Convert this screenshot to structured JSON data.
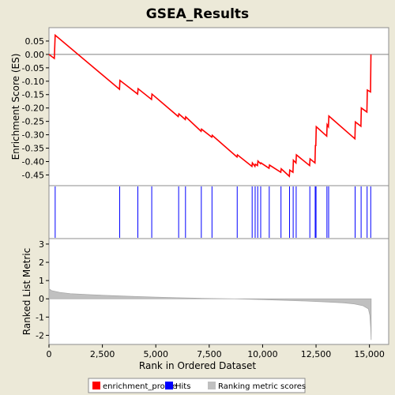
{
  "chart_data": {
    "type": "line",
    "title": "GSEA_Results",
    "xlabel": "Rank in Ordered Dataset",
    "xlim": [
      0,
      15900
    ],
    "x_ticks": [
      0,
      2500,
      5000,
      7500,
      10000,
      12500,
      15000
    ],
    "x_tick_labels": [
      "0",
      "2,500",
      "5,000",
      "7,500",
      "10,000",
      "12,500",
      "15,000"
    ],
    "panels": {
      "es": {
        "ylabel": "Enrichment Score (ES)",
        "ylim": [
          -0.49,
          0.1
        ],
        "y_ticks": [
          0.05,
          0.0,
          -0.05,
          -0.1,
          -0.15,
          -0.2,
          -0.25,
          -0.3,
          -0.35,
          -0.4,
          -0.45
        ],
        "y_tick_labels": [
          "0.05",
          "0.00",
          "-0.05",
          "-0.10",
          "-0.15",
          "-0.20",
          "-0.25",
          "-0.30",
          "-0.35",
          "-0.40",
          "-0.45"
        ],
        "zero_line": true
      },
      "metric": {
        "ylabel": "Ranked List Metric",
        "ylim": [
          -2.5,
          3.3
        ],
        "y_ticks": [
          3,
          2,
          1,
          0,
          -1,
          -2
        ],
        "y_tick_labels": [
          "3",
          "2",
          "1",
          "0",
          "-1",
          "-2"
        ]
      }
    },
    "series": [
      {
        "name": "enrichment_profile",
        "color": "#ff0000",
        "x": [
          0,
          250,
          290,
          3300,
          3320,
          4150,
          4170,
          4800,
          4820,
          6050,
          6080,
          6380,
          6400,
          7120,
          7140,
          7620,
          7640,
          8800,
          8820,
          9500,
          9520,
          9640,
          9660,
          9760,
          9780,
          9900,
          9920,
          10300,
          10320,
          10850,
          10870,
          11250,
          11270,
          11420,
          11440,
          11560,
          11580,
          12200,
          12220,
          12450,
          12470,
          12490,
          12510,
          13000,
          13020,
          13080,
          13100,
          14320,
          14340,
          14600,
          14620,
          14880,
          14900,
          15050,
          15070
        ],
        "y": [
          0.0,
          -0.015,
          0.072,
          -0.13,
          -0.097,
          -0.148,
          -0.128,
          -0.168,
          -0.148,
          -0.232,
          -0.222,
          -0.243,
          -0.233,
          -0.287,
          -0.279,
          -0.309,
          -0.302,
          -0.383,
          -0.375,
          -0.418,
          -0.405,
          -0.418,
          -0.41,
          -0.415,
          -0.398,
          -0.408,
          -0.405,
          -0.425,
          -0.413,
          -0.44,
          -0.427,
          -0.455,
          -0.432,
          -0.44,
          -0.395,
          -0.405,
          -0.375,
          -0.415,
          -0.39,
          -0.405,
          -0.34,
          -0.34,
          -0.27,
          -0.305,
          -0.262,
          -0.27,
          -0.23,
          -0.315,
          -0.252,
          -0.268,
          -0.2,
          -0.215,
          -0.133,
          -0.14,
          0.0
        ]
      },
      {
        "name": "Hits",
        "color": "#0000ff",
        "x": [
          290,
          3310,
          4160,
          4810,
          6070,
          6390,
          7130,
          7630,
          8810,
          9510,
          9650,
          9770,
          9910,
          10310,
          10860,
          11260,
          11430,
          11570,
          12210,
          12460,
          12500,
          13010,
          13090,
          14330,
          14610,
          14890,
          15060
        ]
      },
      {
        "name": "Ranking metric scores",
        "color": "#c0c0c0",
        "x": [
          0,
          120,
          500,
          1000,
          2000,
          3000,
          4000,
          5000,
          6000,
          7000,
          8000,
          8700,
          9000,
          10000,
          11000,
          12000,
          13000,
          13800,
          14300,
          14700,
          14950,
          15020,
          15060,
          15080
        ],
        "y": [
          0.55,
          0.45,
          0.35,
          0.28,
          0.22,
          0.17,
          0.13,
          0.09,
          0.06,
          0.03,
          0.01,
          0.0,
          -0.01,
          -0.04,
          -0.08,
          -0.12,
          -0.17,
          -0.22,
          -0.28,
          -0.38,
          -0.55,
          -0.9,
          -1.6,
          -2.25
        ]
      }
    ]
  },
  "legend": {
    "items": [
      {
        "label": "enrichment_profile",
        "color": "#ff0000"
      },
      {
        "label": "Hits",
        "color": "#0000ff"
      },
      {
        "label": "Ranking metric scores",
        "color": "#c0c0c0"
      }
    ]
  }
}
